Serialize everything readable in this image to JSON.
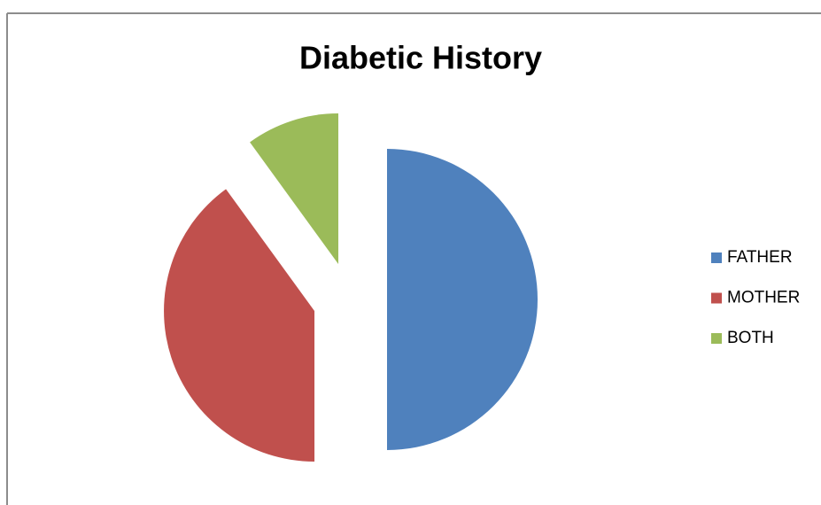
{
  "chart_data": {
    "type": "pie",
    "title": "Diabetic History",
    "categories": [
      "FATHER",
      "MOTHER",
      "BOTH"
    ],
    "values": [
      50,
      40,
      10
    ],
    "colors": [
      "#4f81bd",
      "#c0504d",
      "#9bbb59"
    ],
    "exploded": true,
    "legend": "right"
  }
}
